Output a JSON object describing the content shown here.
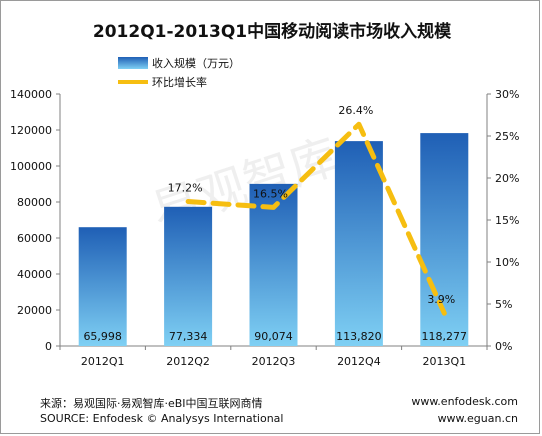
{
  "chart_data": {
    "type": "bar",
    "title": "2012Q1-2013Q1中国移动阅读市场收入规模",
    "categories": [
      "2012Q1",
      "2012Q2",
      "2012Q3",
      "2012Q4",
      "2013Q1"
    ],
    "series": [
      {
        "name": "收入规模（万元）",
        "type": "bar",
        "axis": "left",
        "values": [
          65998,
          77334,
          90074,
          113820,
          118277
        ],
        "value_labels": [
          "65,998",
          "77,334",
          "90,074",
          "113,820",
          "118,277"
        ]
      },
      {
        "name": "环比增长率",
        "type": "line",
        "axis": "right",
        "values": [
          null,
          17.2,
          16.5,
          26.4,
          3.9
        ],
        "value_labels": [
          "",
          "17.2%",
          "16.5%",
          "26.4%",
          "3.9%"
        ]
      }
    ],
    "ylim": [
      0,
      140000
    ],
    "y_ticks": [
      0,
      20000,
      40000,
      60000,
      80000,
      100000,
      120000,
      140000
    ],
    "y_tick_labels": [
      "0",
      "20000",
      "40000",
      "60000",
      "80000",
      "100000",
      "120000",
      "140000"
    ],
    "y2lim": [
      0,
      30
    ],
    "y2_ticks": [
      0,
      5,
      10,
      15,
      20,
      25,
      30
    ],
    "y2_tick_labels": [
      "0%",
      "5%",
      "10%",
      "15%",
      "20%",
      "25%",
      "30%"
    ],
    "legend_position": "top-left",
    "colors": {
      "bar_top": "#1f5fb5",
      "bar_bottom": "#7fd0f4",
      "line": "#f6be11",
      "axis": "#808080"
    }
  },
  "watermark": "易观智库",
  "footer": {
    "source_cn": "来源：易观国际·易观智库·eBI中国互联网商情",
    "source_en": "SOURCE: Enfodesk © Analysys International",
    "url1": "www.enfodesk.com",
    "url2": "www.eguan.cn"
  }
}
